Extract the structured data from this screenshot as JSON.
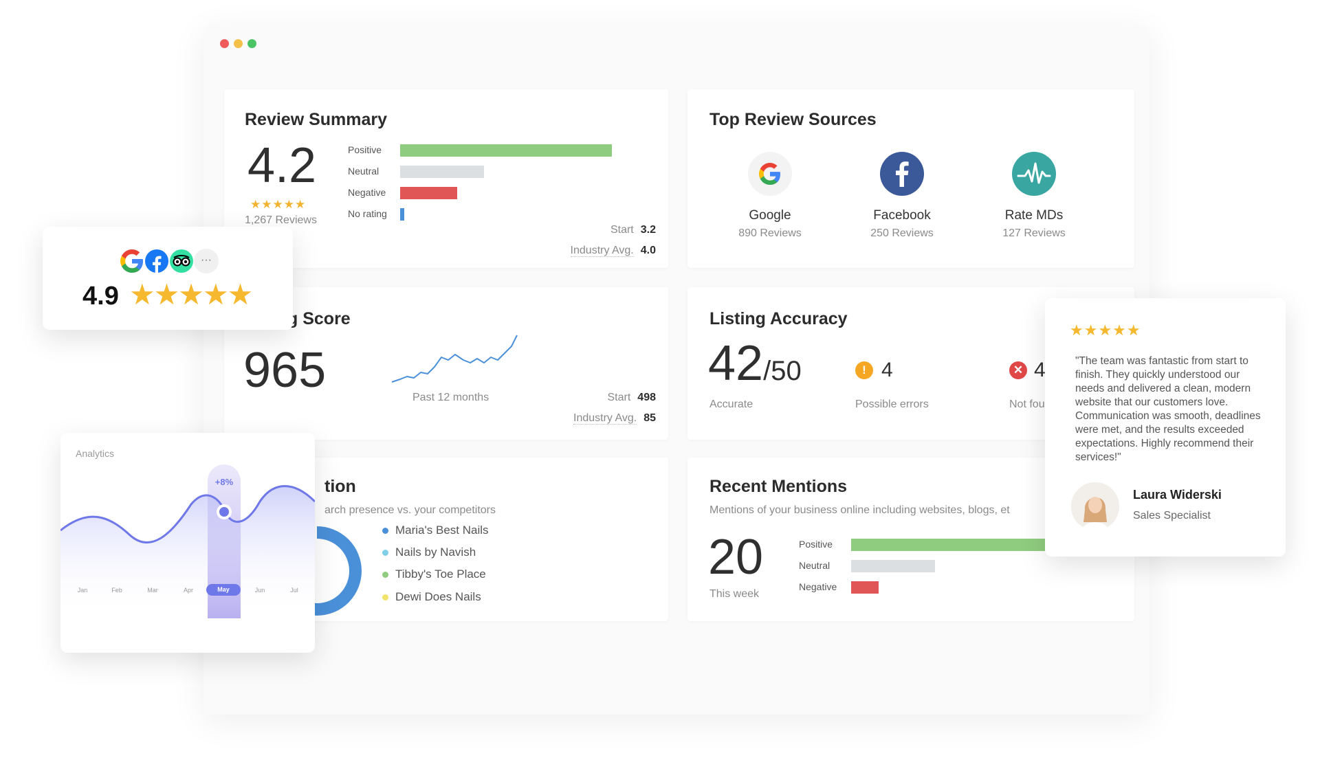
{
  "review_summary": {
    "title": "Review Summary",
    "score": "4.2",
    "stars": "★★★★★",
    "reviews": "1,267 Reviews",
    "bars": [
      {
        "label": "Positive",
        "value": 1.0,
        "color": "#8fcc7f"
      },
      {
        "label": "Neutral",
        "value": 0.4,
        "color": "#dcdfe2"
      },
      {
        "label": "Negative",
        "value": 0.27,
        "color": "#e05555"
      },
      {
        "label": "No rating",
        "value": 0.02,
        "color": "#4a90d9"
      }
    ],
    "start_label": "Start",
    "start_value": "3.2",
    "industry_label": "Industry Avg.",
    "industry_value": "4.0"
  },
  "top_sources": {
    "title": "Top Review Sources",
    "items": [
      {
        "name": "Google",
        "reviews": "890 Reviews",
        "icon": "google-icon"
      },
      {
        "name": "Facebook",
        "reviews": "250 Reviews",
        "icon": "facebook-icon"
      },
      {
        "name": "Rate MDs",
        "reviews": "127 Reviews",
        "icon": "rate-mds-icon"
      }
    ]
  },
  "listing_score": {
    "title": "Listing Score",
    "title_visible": "g Score",
    "score": "965",
    "period": "Past 12 months",
    "start_label": "Start",
    "start_value": "498",
    "industry_label": "Industry Avg.",
    "industry_value": "85",
    "colors": {
      "line": "#4a90d9"
    }
  },
  "listing_accuracy": {
    "title": "Listing Accuracy",
    "accurate_value": "42",
    "accurate_total": "/50",
    "accurate_label": "Accurate",
    "errors_value": "4",
    "errors_label": "Possible errors",
    "notfound_value": "4",
    "notfound_label": "Not fou"
  },
  "competition": {
    "title_visible": "tion",
    "subtitle_visible": "arch presence vs. your competitors",
    "legend": [
      {
        "name": "Maria's Best Nails",
        "color": "#4a90d9"
      },
      {
        "name": "Nails by Navish",
        "color": "#7fd0e6"
      },
      {
        "name": "Tibby's Toe Place",
        "color": "#8fcc7f"
      },
      {
        "name": "Dewi Does Nails",
        "color": "#f2e36b"
      }
    ]
  },
  "recent_mentions": {
    "title": "Recent Mentions",
    "subtitle": "Mentions of your business online including websites, blogs, et",
    "count": "20",
    "count_label": "This week",
    "bars": [
      {
        "label": "Positive",
        "value": 1.0,
        "color": "#8fcc7f"
      },
      {
        "label": "Neutral",
        "value": 0.42,
        "color": "#dcdfe2"
      },
      {
        "label": "Negative",
        "value": 0.14,
        "color": "#e05555"
      }
    ]
  },
  "rating_badge": {
    "rating": "4.9",
    "stars": "★★★★★",
    "more": "···",
    "icons": [
      "google-icon",
      "facebook-icon",
      "tripadvisor-icon",
      "more-icon"
    ]
  },
  "analytics": {
    "title": "Analytics",
    "badge": "+8%",
    "months": [
      "Jan",
      "Feb",
      "Mar",
      "Apr",
      "May",
      "Jun",
      "Jul"
    ],
    "active_month": "May",
    "colors": {
      "line": "#6f78e8",
      "fill": "#e4e6fb"
    }
  },
  "testimonial": {
    "stars": "★★★★★",
    "quote": "\"The team was fantastic from start to finish. They quickly understood our needs and delivered a clean, modern website that our customers love. Communication was smooth, deadlines were met, and the results exceeded expectations. Highly recommend their services!\"",
    "name": "Laura Widerski",
    "role": "Sales Specialist"
  }
}
